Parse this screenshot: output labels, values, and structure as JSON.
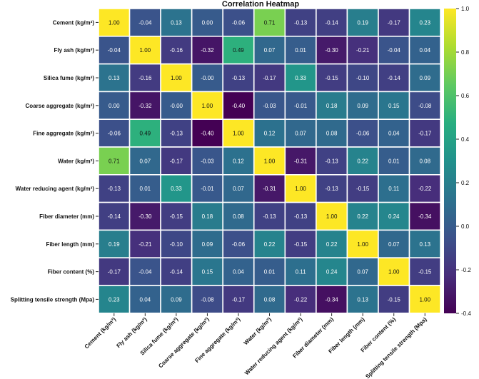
{
  "chart_data": {
    "type": "heatmap",
    "title": "Correlation Heatmap",
    "variables": [
      "Cement (kg/m³)",
      "Fly ash (kg/m³)",
      "Silica fume (kg/m³)",
      "Coarse aggregate (kg/m³)",
      "Fine aggregate (kg/m³)",
      "Water (kg/m³)",
      "Water reducing agent (kg/m³)",
      "Fiber diameter (mm)",
      "Fiber length (mm)",
      "Fiber content (%)",
      "Splitting tensile strength (Mpa)"
    ],
    "matrix": [
      [
        1.0,
        -0.04,
        0.13,
        0.0,
        -0.06,
        0.71,
        -0.13,
        -0.14,
        0.19,
        -0.17,
        0.23
      ],
      [
        -0.04,
        1.0,
        -0.16,
        -0.32,
        0.49,
        0.07,
        0.01,
        -0.3,
        -0.21,
        -0.04,
        0.04
      ],
      [
        0.13,
        -0.16,
        1.0,
        -0.0,
        -0.13,
        -0.17,
        0.33,
        -0.15,
        -0.1,
        -0.14,
        0.09
      ],
      [
        0.0,
        -0.32,
        -0.0,
        1.0,
        -0.4,
        -0.03,
        -0.01,
        0.18,
        0.09,
        0.15,
        -0.08
      ],
      [
        -0.06,
        0.49,
        -0.13,
        -0.4,
        1.0,
        0.12,
        0.07,
        0.08,
        -0.06,
        0.04,
        -0.17
      ],
      [
        0.71,
        0.07,
        -0.17,
        -0.03,
        0.12,
        1.0,
        -0.31,
        -0.13,
        0.22,
        0.01,
        0.08
      ],
      [
        -0.13,
        0.01,
        0.33,
        -0.01,
        0.07,
        -0.31,
        1.0,
        -0.13,
        -0.15,
        0.11,
        -0.22
      ],
      [
        -0.14,
        -0.3,
        -0.15,
        0.18,
        0.08,
        -0.13,
        -0.13,
        1.0,
        0.22,
        0.24,
        -0.34
      ],
      [
        0.19,
        -0.21,
        -0.1,
        0.09,
        -0.06,
        0.22,
        -0.15,
        0.22,
        1.0,
        0.07,
        0.13
      ],
      [
        -0.17,
        -0.04,
        -0.14,
        0.15,
        0.04,
        0.01,
        0.11,
        0.24,
        0.07,
        1.0,
        -0.15
      ],
      [
        0.23,
        0.04,
        0.09,
        -0.08,
        -0.17,
        0.08,
        -0.22,
        -0.34,
        0.13,
        -0.15,
        1.0
      ]
    ],
    "cell_labels": [
      [
        "1.00",
        "-0.04",
        "0.13",
        "0.00",
        "-0.06",
        "0.71",
        "-0.13",
        "-0.14",
        "0.19",
        "-0.17",
        "0.23"
      ],
      [
        "-0.04",
        "1.00",
        "-0.16",
        "-0.32",
        "0.49",
        "0.07",
        "0.01",
        "-0.30",
        "-0.21",
        "-0.04",
        "0.04"
      ],
      [
        "0.13",
        "-0.16",
        "1.00",
        "-0.00",
        "-0.13",
        "-0.17",
        "0.33",
        "-0.15",
        "-0.10",
        "-0.14",
        "0.09"
      ],
      [
        "0.00",
        "-0.32",
        "-0.00",
        "1.00",
        "-0.40",
        "-0.03",
        "-0.01",
        "0.18",
        "0.09",
        "0.15",
        "-0.08"
      ],
      [
        "-0.06",
        "0.49",
        "-0.13",
        "-0.40",
        "1.00",
        "0.12",
        "0.07",
        "0.08",
        "-0.06",
        "0.04",
        "-0.17"
      ],
      [
        "0.71",
        "0.07",
        "-0.17",
        "-0.03",
        "0.12",
        "1.00",
        "-0.31",
        "-0.13",
        "0.22",
        "0.01",
        "0.08"
      ],
      [
        "-0.13",
        "0.01",
        "0.33",
        "-0.01",
        "0.07",
        "-0.31",
        "1.00",
        "-0.13",
        "-0.15",
        "0.11",
        "-0.22"
      ],
      [
        "-0.14",
        "-0.30",
        "-0.15",
        "0.18",
        "0.08",
        "-0.13",
        "-0.13",
        "1.00",
        "0.22",
        "0.24",
        "-0.34"
      ],
      [
        "0.19",
        "-0.21",
        "-0.10",
        "0.09",
        "-0.06",
        "0.22",
        "-0.15",
        "0.22",
        "1.00",
        "0.07",
        "0.13"
      ],
      [
        "-0.17",
        "-0.04",
        "-0.14",
        "0.15",
        "0.04",
        "0.01",
        "0.11",
        "0.24",
        "0.07",
        "1.00",
        "-0.15"
      ],
      [
        "0.23",
        "0.04",
        "0.09",
        "-0.08",
        "-0.17",
        "0.08",
        "-0.22",
        "-0.34",
        "0.13",
        "-0.15",
        "1.00"
      ]
    ],
    "colormap": "viridis",
    "vmin": -0.4,
    "vmax": 1.0,
    "colorbar_ticks": [
      -0.4,
      -0.2,
      0.0,
      0.2,
      0.4,
      0.6,
      0.8,
      1.0
    ],
    "colorbar_tick_labels": [
      "-0.4",
      "-0.2",
      "0.0",
      "0.2",
      "0.4",
      "0.6",
      "0.8",
      "1.0"
    ],
    "cell_border_color": "#ffffff",
    "text_dark": "#111111",
    "text_light": "#ffffff"
  }
}
